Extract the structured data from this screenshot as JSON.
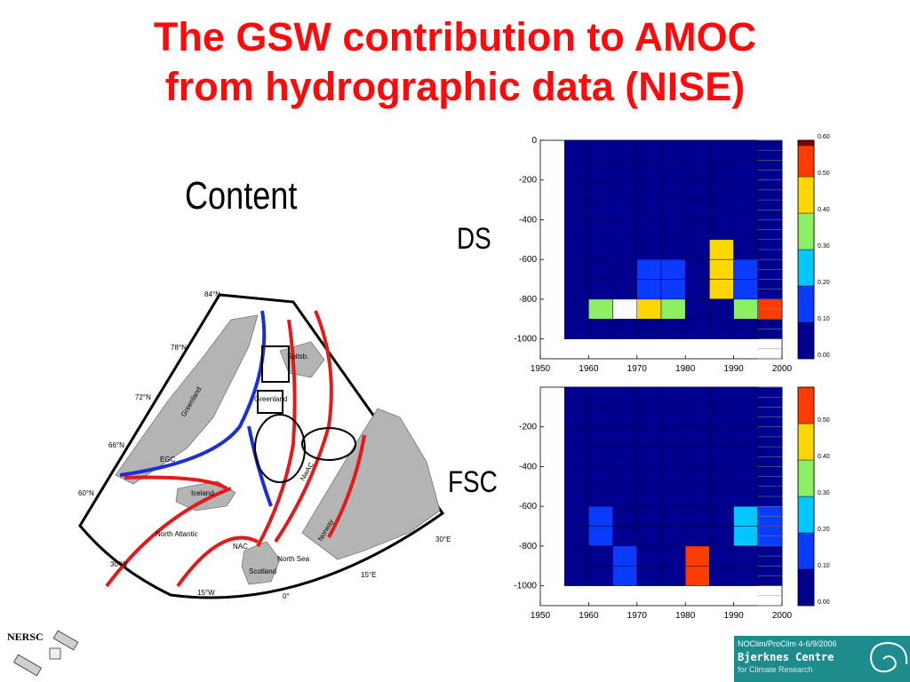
{
  "slide": {
    "title_line1": "The GSW contribution to AMOC",
    "title_line2": "from hydrographic data (NISE)",
    "content_label": "Content",
    "ds_label": "DS",
    "fsc_label": "FSC"
  },
  "map": {
    "lat_labels": [
      "84°N",
      "78°N",
      "72°N",
      "66°N",
      "60°N"
    ],
    "lon_labels": [
      "30°W",
      "15°W",
      "0°",
      "15°E",
      "30°E"
    ],
    "place_labels": [
      "Greenland",
      "Iceland",
      "North Atlantic",
      "Scotland",
      "North Sea",
      "Norway",
      "Spitsb.",
      "Greenland",
      "EGC",
      "NAC",
      "NwAC"
    ],
    "colors": {
      "warm_current": "#e41a1a",
      "cold_current": "#1a2fd6",
      "land": "#b4b4b4"
    }
  },
  "footer": {
    "left_logo_text": "NERSC",
    "right_logo_line1": "NOClim/ProClim 4-6/9/2006",
    "right_logo_line2": "Bjerknes Centre",
    "right_logo_line3": "for Climate Research"
  },
  "chart_data": [
    {
      "type": "heatmap",
      "name": "DS",
      "x_edges": [
        1955,
        1960,
        1965,
        1970,
        1975,
        1980,
        1985,
        1990,
        1995
      ],
      "y_edges": [
        0,
        -100,
        -200,
        -300,
        -400,
        -500,
        -600,
        -700,
        -800,
        -900,
        -1000
      ],
      "xlim": [
        1950,
        2000
      ],
      "ylim": [
        -1100,
        0
      ],
      "xticks": [
        1950,
        1960,
        1970,
        1980,
        1990,
        2000
      ],
      "yticks": [
        0,
        -200,
        -400,
        -600,
        -800,
        -1000
      ],
      "grid": true,
      "empty_cells": [
        {
          "year": 1965,
          "depth": -900
        }
      ],
      "nonzero_cells": [
        {
          "year": 1960,
          "depth": -900,
          "value": 0.3
        },
        {
          "year": 1970,
          "depth": -900,
          "value": 0.45
        },
        {
          "year": 1975,
          "depth": -900,
          "value": 0.3
        },
        {
          "year": 1970,
          "depth": -800,
          "value": 0.15
        },
        {
          "year": 1970,
          "depth": -700,
          "value": 0.15
        },
        {
          "year": 1975,
          "depth": -800,
          "value": 0.15
        },
        {
          "year": 1975,
          "depth": -700,
          "value": 0.15
        },
        {
          "year": 1970,
          "depth": -600,
          "value": 0.05
        },
        {
          "year": 1985,
          "depth": -500,
          "value": 0.05
        },
        {
          "year": 1985,
          "depth": -600,
          "value": 0.48
        },
        {
          "year": 1985,
          "depth": -700,
          "value": 0.42
        },
        {
          "year": 1985,
          "depth": -800,
          "value": 0.42
        },
        {
          "year": 1990,
          "depth": -600,
          "value": 0.05
        },
        {
          "year": 1990,
          "depth": -700,
          "value": 0.15
        },
        {
          "year": 1990,
          "depth": -800,
          "value": 0.15
        },
        {
          "year": 1990,
          "depth": -900,
          "value": 0.3
        },
        {
          "year": 1995,
          "depth": -700,
          "value": 0.05
        },
        {
          "year": 1995,
          "depth": -800,
          "value": 0.05
        },
        {
          "year": 1995,
          "depth": -900,
          "value": 0.58
        }
      ],
      "colorbar": {
        "min": 0.0,
        "max": 0.6,
        "ticks": [
          "0.00",
          "0.10",
          "0.20",
          "0.30",
          "0.40",
          "0.50",
          "0.60"
        ],
        "colors": [
          "#00008f",
          "#0a3cff",
          "#00c8ff",
          "#8cf064",
          "#ffd700",
          "#ff3c00",
          "#800000"
        ]
      }
    },
    {
      "type": "heatmap",
      "name": "FSC",
      "x_edges": [
        1955,
        1960,
        1965,
        1970,
        1975,
        1980,
        1985,
        1990,
        1995
      ],
      "y_edges": [
        0,
        -100,
        -200,
        -300,
        -400,
        -500,
        -600,
        -700,
        -800,
        -900,
        -1000
      ],
      "xlim": [
        1950,
        2000
      ],
      "ylim": [
        -1100,
        0
      ],
      "xticks": [
        1950,
        1960,
        1970,
        1980,
        1990,
        2000
      ],
      "yticks": [
        -200,
        -400,
        -600,
        -800,
        -1000
      ],
      "grid": true,
      "empty_cells": [],
      "nonzero_cells": [
        {
          "year": 1960,
          "depth": -700,
          "value": 0.15
        },
        {
          "year": 1960,
          "depth": -800,
          "value": 0.15
        },
        {
          "year": 1965,
          "depth": -900,
          "value": 0.18
        },
        {
          "year": 1965,
          "depth": -1000,
          "value": 0.18
        },
        {
          "year": 1980,
          "depth": -900,
          "value": 0.52
        },
        {
          "year": 1980,
          "depth": -1000,
          "value": 0.52
        },
        {
          "year": 1990,
          "depth": -700,
          "value": 0.22
        },
        {
          "year": 1990,
          "depth": -800,
          "value": 0.22
        },
        {
          "year": 1995,
          "depth": -700,
          "value": 0.15
        },
        {
          "year": 1995,
          "depth": -800,
          "value": 0.15
        }
      ],
      "colorbar": {
        "min": 0.0,
        "max": 0.6,
        "ticks": [
          "0.00",
          "0.10",
          "0.20",
          "0.30",
          "0.40",
          "0.50"
        ],
        "colors": [
          "#00008f",
          "#0a3cff",
          "#00c8ff",
          "#8cf064",
          "#ffd700",
          "#ff3c00"
        ]
      }
    }
  ]
}
